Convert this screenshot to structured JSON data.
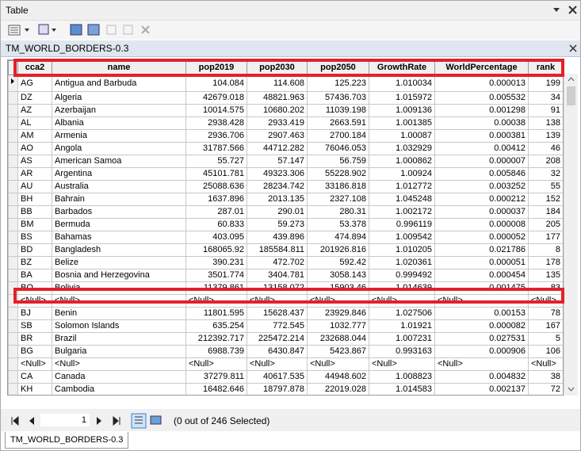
{
  "window": {
    "title": "Table",
    "tab": "TM_WORLD_BORDERS-0.3"
  },
  "table": {
    "columns": [
      "cca2",
      "name",
      "pop2019",
      "pop2030",
      "pop2050",
      "GrowthRate",
      "WorldPercentage",
      "rank"
    ],
    "rows": [
      [
        "AG",
        "Antigua and Barbuda",
        "104.084",
        "114.608",
        "125.223",
        "1.010034",
        "0.000013",
        "199"
      ],
      [
        "DZ",
        "Algeria",
        "42679.018",
        "48821.963",
        "57436.703",
        "1.015972",
        "0.005532",
        "34"
      ],
      [
        "AZ",
        "Azerbaijan",
        "10014.575",
        "10680.202",
        "11039.198",
        "1.009136",
        "0.001298",
        "91"
      ],
      [
        "AL",
        "Albania",
        "2938.428",
        "2933.419",
        "2663.591",
        "1.001385",
        "0.00038",
        "138"
      ],
      [
        "AM",
        "Armenia",
        "2936.706",
        "2907.463",
        "2700.184",
        "1.00087",
        "0.000381",
        "139"
      ],
      [
        "AO",
        "Angola",
        "31787.566",
        "44712.282",
        "76046.053",
        "1.032929",
        "0.00412",
        "46"
      ],
      [
        "AS",
        "American Samoa",
        "55.727",
        "57.147",
        "56.759",
        "1.000862",
        "0.000007",
        "208"
      ],
      [
        "AR",
        "Argentina",
        "45101.781",
        "49323.306",
        "55228.902",
        "1.00924",
        "0.005846",
        "32"
      ],
      [
        "AU",
        "Australia",
        "25088.636",
        "28234.742",
        "33186.818",
        "1.012772",
        "0.003252",
        "55"
      ],
      [
        "BH",
        "Bahrain",
        "1637.896",
        "2013.135",
        "2327.108",
        "1.045248",
        "0.000212",
        "152"
      ],
      [
        "BB",
        "Barbados",
        "287.01",
        "290.01",
        "280.31",
        "1.002172",
        "0.000037",
        "184"
      ],
      [
        "BM",
        "Bermuda",
        "60.833",
        "59.273",
        "53.378",
        "0.996119",
        "0.000008",
        "205"
      ],
      [
        "BS",
        "Bahamas",
        "403.095",
        "439.896",
        "474.894",
        "1.009542",
        "0.000052",
        "177"
      ],
      [
        "BD",
        "Bangladesh",
        "168065.92",
        "185584.811",
        "201926.816",
        "1.010205",
        "0.021786",
        "8"
      ],
      [
        "BZ",
        "Belize",
        "390.231",
        "472.702",
        "592.42",
        "1.020361",
        "0.000051",
        "178"
      ],
      [
        "BA",
        "Bosnia and Herzegovina",
        "3501.774",
        "3404.781",
        "3058.143",
        "0.999492",
        "0.000454",
        "135"
      ],
      [
        "BO",
        "Bolivia",
        "11379.861",
        "13158.072",
        "15903.46",
        "1.014639",
        "0.001475",
        "83"
      ],
      [
        "<Null>",
        "<Null>",
        "<Null>",
        "<Null>",
        "<Null>",
        "<Null>",
        "<Null>",
        "<Null>"
      ],
      [
        "BJ",
        "Benin",
        "11801.595",
        "15628.437",
        "23929.846",
        "1.027506",
        "0.00153",
        "78"
      ],
      [
        "SB",
        "Solomon Islands",
        "635.254",
        "772.545",
        "1032.777",
        "1.01921",
        "0.000082",
        "167"
      ],
      [
        "BR",
        "Brazil",
        "212392.717",
        "225472.214",
        "232688.044",
        "1.007231",
        "0.027531",
        "5"
      ],
      [
        "BG",
        "Bulgaria",
        "6988.739",
        "6430.847",
        "5423.867",
        "0.993163",
        "0.000906",
        "106"
      ],
      [
        "<Null>",
        "<Null>",
        "<Null>",
        "<Null>",
        "<Null>",
        "<Null>",
        "<Null>",
        "<Null>"
      ],
      [
        "CA",
        "Canada",
        "37279.811",
        "40617.535",
        "44948.602",
        "1.008823",
        "0.004832",
        "38"
      ],
      [
        "KH",
        "Cambodia",
        "16482.646",
        "18797.878",
        "22019.028",
        "1.014583",
        "0.002137",
        "72"
      ]
    ]
  },
  "footer": {
    "page": "1",
    "selection": "(0 out of 246 Selected)",
    "tab": "TM_WORLD_BORDERS-0.3"
  }
}
